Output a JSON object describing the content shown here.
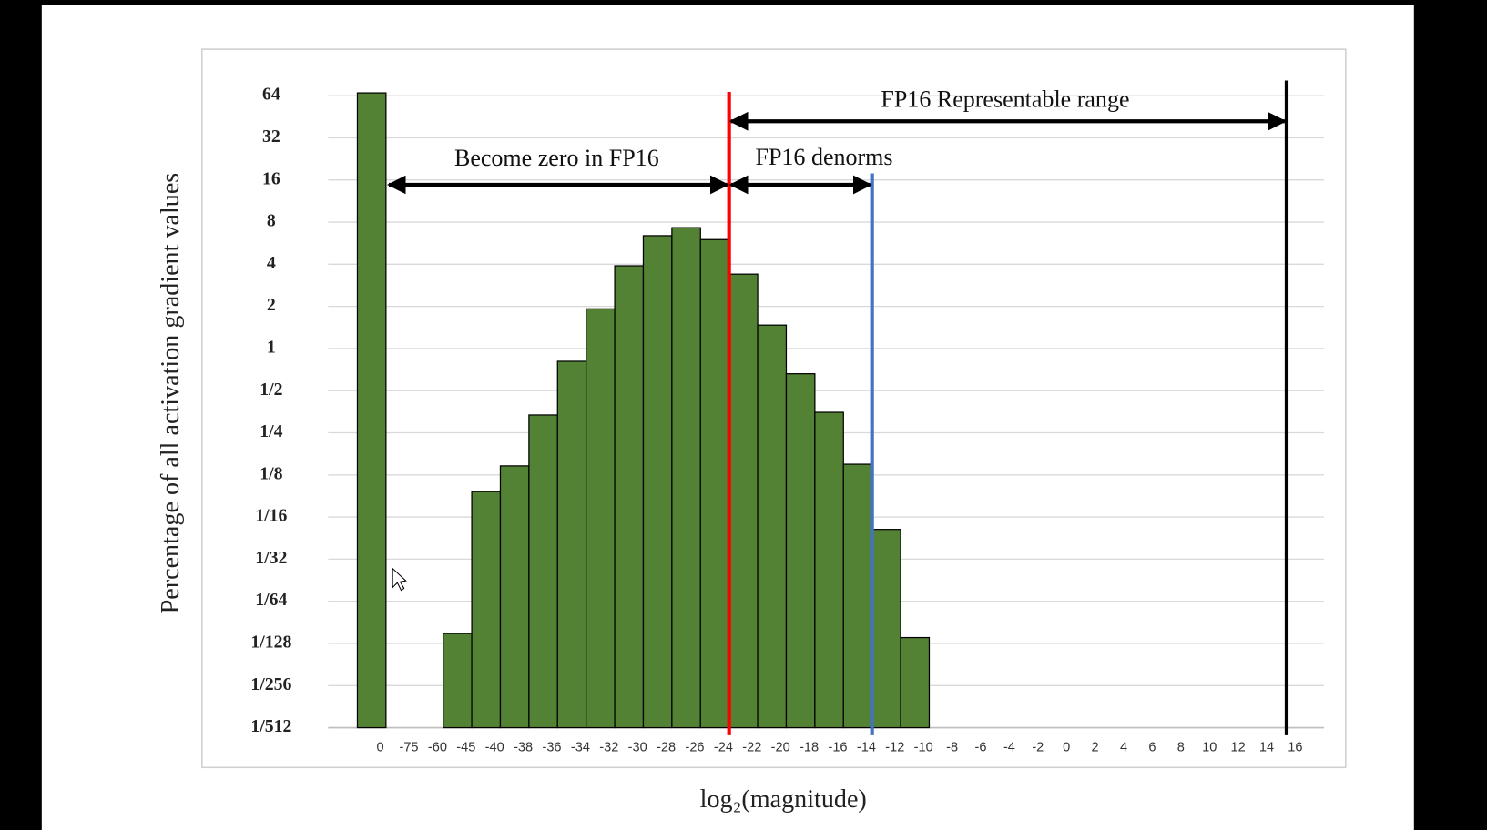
{
  "chart_data": {
    "type": "bar",
    "log_scale_y": true,
    "base": 2,
    "ylabel": "Percentage of all activation gradient values",
    "xlabel": "log₂(magnitude)",
    "color": "#548235",
    "categories": [
      "0",
      "-75",
      "-60",
      "-45",
      "-40",
      "-38",
      "-36",
      "-34",
      "-32",
      "-30",
      "-28",
      "-26",
      "-24",
      "-22",
      "-20",
      "-18",
      "-16",
      "-14",
      "-12",
      "-10",
      "-8",
      "-6",
      "-4",
      "-2",
      "0",
      "2",
      "4",
      "6",
      "8",
      "10",
      "12",
      "14",
      "16"
    ],
    "values": [
      67,
      null,
      null,
      0.0092,
      0.095,
      0.145,
      0.335,
      0.81,
      1.92,
      3.9,
      6.4,
      7.3,
      6.0,
      3.4,
      1.47,
      0.66,
      0.35,
      0.149,
      0.051,
      0.0086,
      null,
      null,
      null,
      null,
      null,
      null,
      null,
      null,
      null,
      null,
      null,
      null,
      null
    ],
    "ylim": [
      0.001953125,
      64
    ],
    "yticks": [
      {
        "value": 0.001953125,
        "label": "1/512"
      },
      {
        "value": 0.00390625,
        "label": "1/256"
      },
      {
        "value": 0.0078125,
        "label": "1/128"
      },
      {
        "value": 0.015625,
        "label": "1/64"
      },
      {
        "value": 0.03125,
        "label": "1/32"
      },
      {
        "value": 0.0625,
        "label": "1/16"
      },
      {
        "value": 0.125,
        "label": "1/8"
      },
      {
        "value": 0.25,
        "label": "1/4"
      },
      {
        "value": 0.5,
        "label": "1/2"
      },
      1,
      2,
      4,
      8,
      16,
      32,
      64
    ],
    "grid": true,
    "vlines": [
      {
        "x": -24,
        "color": "#ff0000"
      },
      {
        "x": -14,
        "color": "#4472c4"
      },
      {
        "x": 15,
        "color": "#000000"
      }
    ],
    "annotations": [
      "Become zero in FP16",
      "FP16 denorms",
      "FP16 Representable range"
    ]
  }
}
